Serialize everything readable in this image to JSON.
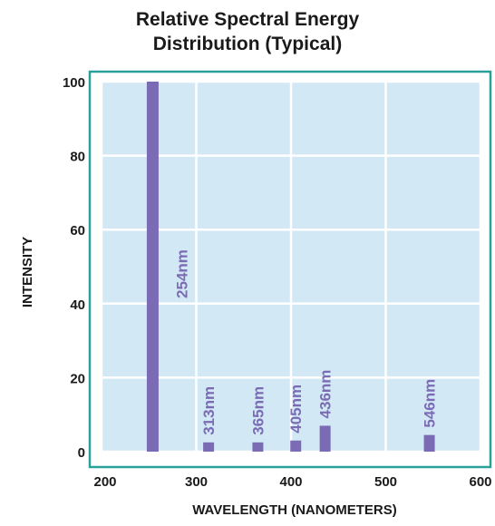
{
  "chart_data": {
    "type": "bar",
    "title_lines": [
      "Relative Spectral Energy",
      "Distribution (Typical)"
    ],
    "xlabel": "WAVELENGTH (NANOMETERS)",
    "ylabel": "INTENSITY",
    "xlim": [
      200,
      600
    ],
    "ylim": [
      0,
      100
    ],
    "xticks": [
      200,
      300,
      400,
      500,
      600
    ],
    "yticks": [
      0,
      20,
      40,
      60,
      80,
      100
    ],
    "grid": true,
    "colors": {
      "bar": "#7b6bb5",
      "plot_background": "#d2e8f5",
      "grid": "#ffffff",
      "frame": "#2aa198",
      "label": "#7b6bb5"
    },
    "series": [
      {
        "points": [
          {
            "x": 254,
            "y": 100,
            "label": "254nm"
          },
          {
            "x": 313,
            "y": 2.5,
            "label": "313nm"
          },
          {
            "x": 365,
            "y": 2.5,
            "label": "365nm"
          },
          {
            "x": 405,
            "y": 3,
            "label": "405nm"
          },
          {
            "x": 436,
            "y": 7,
            "label": "436nm"
          },
          {
            "x": 546,
            "y": 4.5,
            "label": "546nm"
          }
        ]
      }
    ]
  }
}
